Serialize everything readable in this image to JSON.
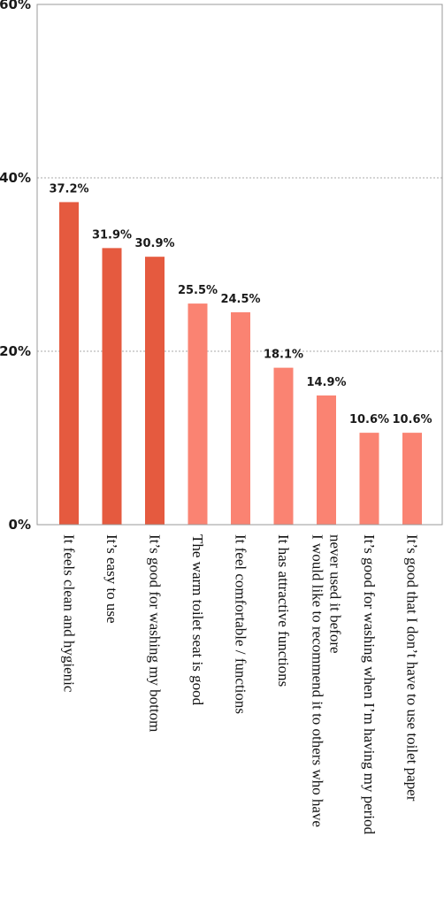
{
  "chart_data": {
    "type": "bar",
    "title": "",
    "xlabel": "",
    "ylabel": "",
    "ylim": [
      0,
      60
    ],
    "yticks": [
      0,
      20,
      40,
      60
    ],
    "ytick_labels": [
      "0%",
      "20%",
      "40%",
      "60%"
    ],
    "grid": true,
    "categories": [
      [
        "It feels clean and hygienic"
      ],
      [
        "It’s easy to use"
      ],
      [
        "It’s good for washing my bottom"
      ],
      [
        "The warm toilet seat is good"
      ],
      [
        "It feel comfortable / functions"
      ],
      [
        "It has attractive functions"
      ],
      [
        "I would like to recommend it to others who have",
        "never used it before"
      ],
      [
        "It’s good for washing when I’m having my period"
      ],
      [
        "It’s good that I don’t have to use toilet paper"
      ]
    ],
    "values": [
      37.2,
      31.9,
      30.9,
      25.5,
      24.5,
      18.1,
      14.9,
      10.6,
      10.6
    ],
    "value_labels": [
      "37.2%",
      "31.9%",
      "30.9%",
      "25.5%",
      "24.5%",
      "18.1%",
      "14.9%",
      "10.6%",
      "10.6%"
    ],
    "colors": [
      "#e55a3f",
      "#e55a3f",
      "#e55a3f",
      "#fa8372",
      "#fa8372",
      "#fa8372",
      "#fa8372",
      "#fa8372",
      "#fa8372"
    ],
    "frame_color": "#999999",
    "grid_color": "#aaaaaa"
  }
}
